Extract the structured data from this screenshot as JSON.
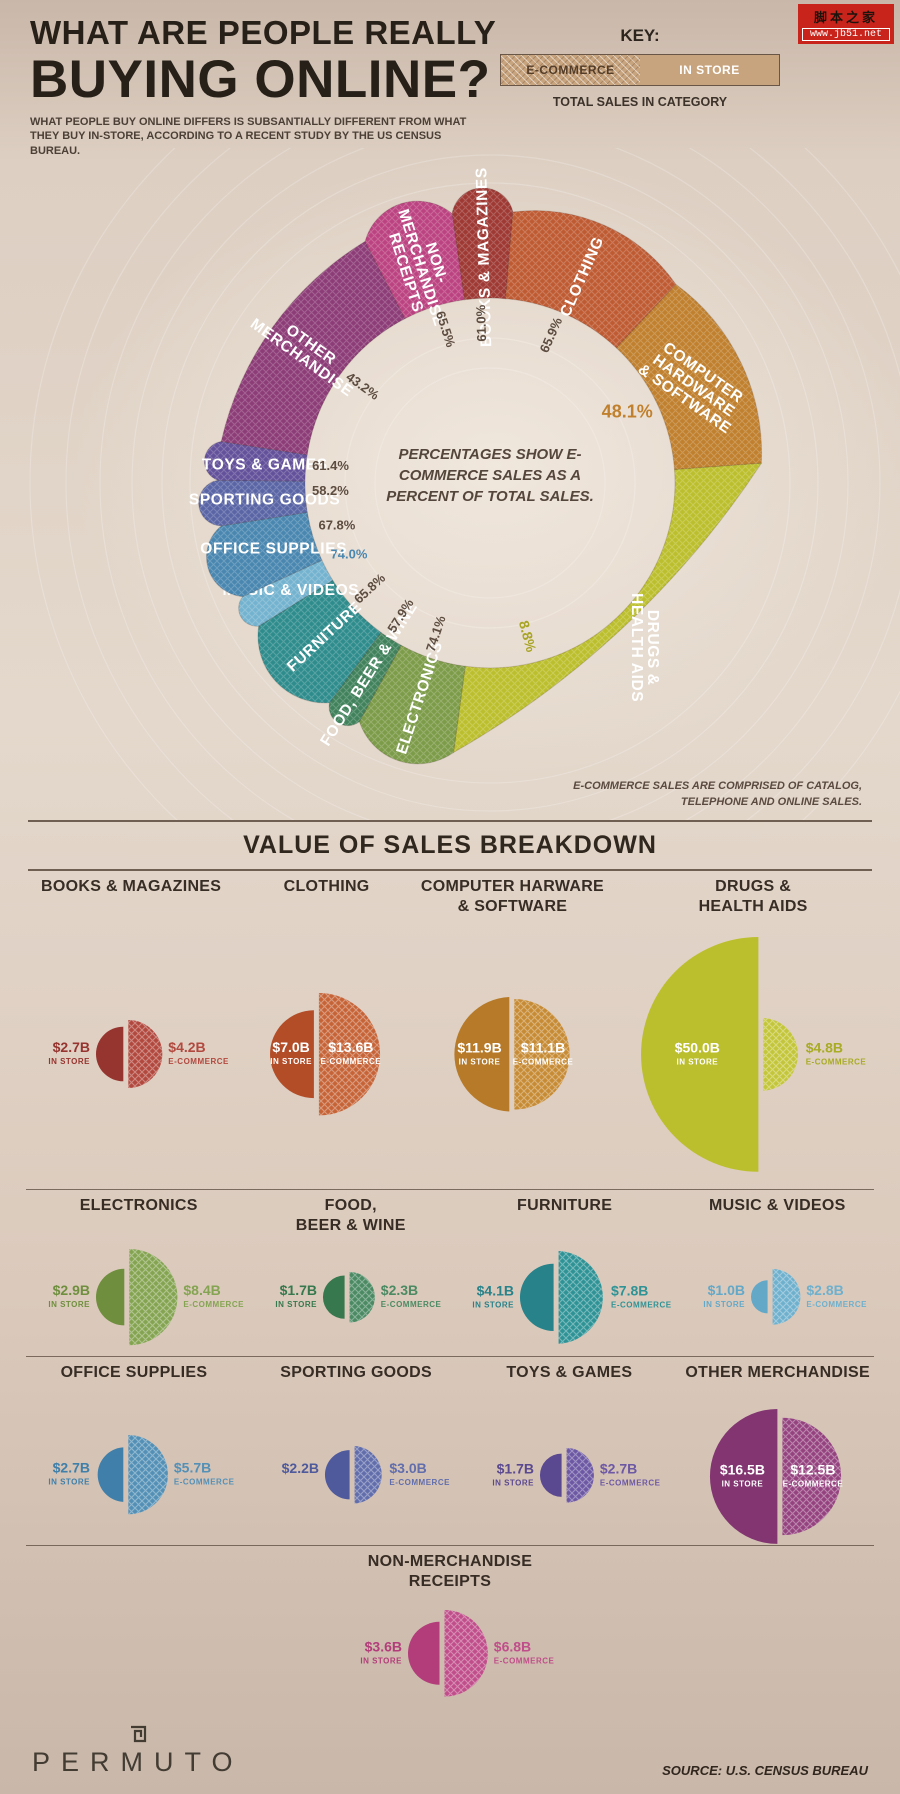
{
  "meta": {
    "watermark_line1": "脚本之家",
    "watermark_line2": "www.jb51.net"
  },
  "header": {
    "title_line1": "WHAT ARE PEOPLE REALLY",
    "title_line2": "BUYING ONLINE?",
    "subtitle": "WHAT PEOPLE BUY ONLINE DIFFERS IS SUBSANTIALLY DIFFERENT FROM WHAT THEY BUY IN-STORE, ACCORDING TO A RECENT STUDY BY THE US CENSUS BUREAU.",
    "key": {
      "label": "KEY:",
      "ecommerce": "E-COMMERCE",
      "instore": "IN STORE",
      "swatch_color": "#c8a47e",
      "total_caption": "TOTAL SALES IN CATEGORY"
    }
  },
  "footer": {
    "brand": "PERMUTO",
    "source": "SOURCE: U.S. CENSUS BUREAU"
  },
  "chart_data": [
    {
      "type": "donut",
      "title": "E-commerce sales as a percent of total sales, by category",
      "center_text": "PERCENTAGES SHOW E-COMMERCE SALES AS A PERCENT OF TOTAL SALES.",
      "note": "E-COMMERCE SALES ARE COMPRISED OF CATALOG, TELEPHONE AND ONLINE SALES.",
      "start_angle": -8,
      "segments": [
        {
          "label": "BOOKS & MAGAZINES",
          "lines": [
            "BOOKS & MAGAZINES"
          ],
          "ecommerce_pct": 61.0,
          "total_b": 6.9,
          "color": "#9e3934"
        },
        {
          "label": "CLOTHING",
          "lines": [
            "CLOTHING"
          ],
          "ecommerce_pct": 65.9,
          "total_b": 20.6,
          "color": "#bf5b33"
        },
        {
          "label": "COMPUTER HARDWARE & SOFTWARE",
          "lines": [
            "COMPUTER",
            "HARDWARE",
            "& SOFTWARE"
          ],
          "ecommerce_pct": 48.1,
          "total_b": 23.0,
          "color": "#c0802e",
          "label_rot": 35,
          "pct_rot": 0,
          "pct_size": 18,
          "pct_r": 152,
          "pct_color": "#c0802e"
        },
        {
          "label": "DRUGS & HEALTH AIDS",
          "lines": [
            "DRUGS &",
            "HEALTH AIDS"
          ],
          "ecommerce_pct": 8.8,
          "total_b": 54.8,
          "color": "#bcbf2d",
          "label_rot": 90,
          "pct_rot": 75,
          "pct_r": 158,
          "pct_angle": 168,
          "pct_color": "#a8a424",
          "pct_size": 14
        },
        {
          "label": "ELECTRONICS",
          "lines": [
            "ELECTRONICS"
          ],
          "ecommerce_pct": 74.1,
          "total_b": 11.3,
          "color": "#7d9c49"
        },
        {
          "label": "FOOD, BEER & WINE",
          "lines": [
            "FOOD, BEER & WINE"
          ],
          "ecommerce_pct": 57.9,
          "total_b": 4.0,
          "color": "#41825c"
        },
        {
          "label": "FURNITURE",
          "lines": [
            "FURNITURE"
          ],
          "ecommerce_pct": 65.8,
          "total_b": 11.9,
          "color": "#2f8c8c"
        },
        {
          "label": "MUSIC & VIDEOS",
          "lines": [
            "MUSIC & VIDEOS"
          ],
          "ecommerce_pct": 74.0,
          "total_b": 3.8,
          "color": "#74b3cf",
          "label_rot": 0,
          "pct_color": "#4a87b0"
        },
        {
          "label": "OFFICE SUPPLIES",
          "lines": [
            "OFFICE SUPPLIES"
          ],
          "ecommerce_pct": 67.8,
          "total_b": 8.4,
          "color": "#4a87b0",
          "label_rot": 0
        },
        {
          "label": "SPORTING GOODS",
          "lines": [
            "SPORTING GOODS"
          ],
          "ecommerce_pct": 58.2,
          "total_b": 5.2,
          "color": "#5a65a5",
          "label_rot": 0
        },
        {
          "label": "TOYS & GAMES",
          "lines": [
            "TOYS & GAMES"
          ],
          "ecommerce_pct": 61.4,
          "total_b": 4.4,
          "color": "#64519b",
          "label_rot": 0
        },
        {
          "label": "OTHER MERCHANDISE",
          "lines": [
            "OTHER",
            "MERCHANDISE"
          ],
          "ecommerce_pct": 43.2,
          "total_b": 29.0,
          "color": "#8c3c76"
        },
        {
          "label": "NON-MERCHANDISE RECEIPTS",
          "lines": [
            "NON-",
            "MERCHANDISE",
            "RECEIPTS"
          ],
          "ecommerce_pct": 65.5,
          "total_b": 10.4,
          "color": "#bc4381"
        }
      ]
    },
    {
      "type": "semicircle-pairs",
      "title": "VALUE OF SALES BREAKDOWN",
      "unit": "billions USD",
      "in_store_label": "IN STORE",
      "ecommerce_label": "E-COMMERCE",
      "rows": [
        [
          {
            "title": "BOOKS & MAGAZINES",
            "title_lines": [
              "BOOKS & MAGAZINES"
            ],
            "in_store_b": 2.7,
            "ecommerce_b": 4.2,
            "in_store_display": "$2.7B",
            "ecommerce_display": "$4.2B",
            "in_color": "#96342f",
            "ec_color": "#b2493f",
            "in_inside": false,
            "ec_inside": false
          },
          {
            "title": "CLOTHING",
            "title_lines": [
              "CLOTHING"
            ],
            "in_store_b": 7.0,
            "ecommerce_b": 13.6,
            "in_store_display": "$7.0B",
            "ecommerce_display": "$13.6B",
            "in_color": "#b34d28",
            "ec_color": "#c66438",
            "in_inside": true,
            "ec_inside": true
          },
          {
            "title": "COMPUTER HARWARE & SOFTWARE",
            "title_lines": [
              "COMPUTER HARWARE",
              "& SOFTWARE"
            ],
            "in_store_b": 11.9,
            "ecommerce_b": 11.1,
            "in_store_display": "$11.9B",
            "ecommerce_display": "$11.1B",
            "in_color": "#b67a29",
            "ec_color": "#c68b34",
            "in_inside": true,
            "ec_inside": true
          },
          {
            "title": "DRUGS & HEALTH AIDS",
            "title_lines": [
              "DRUGS &",
              "HEALTH AIDS"
            ],
            "in_store_b": 50.0,
            "ecommerce_b": 4.8,
            "in_store_display": "$50.0B",
            "ecommerce_display": "$4.8B",
            "in_color": "#bcbf2d",
            "ec_color": "#c3c63a",
            "ec_text": "#a8ab24",
            "in_inside": true,
            "ec_inside": false,
            "in_text_inside": "#8a8c1e"
          }
        ],
        [
          {
            "title": "ELECTRONICS",
            "title_lines": [
              "ELECTRONICS"
            ],
            "in_store_b": 2.9,
            "ecommerce_b": 8.4,
            "in_store_display": "$2.9B",
            "ecommerce_display": "$8.4B",
            "in_color": "#6f8f3e",
            "ec_color": "#85a452",
            "in_inside": false,
            "ec_inside": false
          },
          {
            "title": "FOOD, BEER & WINE",
            "title_lines": [
              "FOOD,",
              "BEER & WINE"
            ],
            "in_store_b": 1.7,
            "ecommerce_b": 2.3,
            "in_store_display": "$1.7B",
            "ecommerce_display": "$2.3B",
            "in_color": "#37784f",
            "ec_color": "#4b8a63",
            "in_inside": false,
            "ec_inside": false
          },
          {
            "title": "FURNITURE",
            "title_lines": [
              "FURNITURE"
            ],
            "in_store_b": 4.1,
            "ecommerce_b": 7.8,
            "in_store_display": "$4.1B",
            "ecommerce_display": "$7.8B",
            "in_color": "#27828a",
            "ec_color": "#2f9396",
            "in_inside": false,
            "ec_inside": false
          },
          {
            "title": "MUSIC & VIDEOS",
            "title_lines": [
              "MUSIC & VIDEOS"
            ],
            "in_store_b": 1.0,
            "ecommerce_b": 2.8,
            "in_store_display": "$1.0B",
            "ecommerce_display": "$2.8B",
            "in_color": "#64a8c8",
            "ec_color": "#6fb0cd",
            "in_inside": false,
            "ec_inside": false
          }
        ],
        [
          {
            "title": "OFFICE SUPPLIES",
            "title_lines": [
              "OFFICE SUPPLIES"
            ],
            "in_store_b": 2.7,
            "ecommerce_b": 5.7,
            "in_store_display": "$2.7B",
            "ecommerce_display": "$5.7B",
            "in_color": "#3f7fa9",
            "ec_color": "#5490b6",
            "in_inside": false,
            "ec_inside": false
          },
          {
            "title": "SPORTING GOODS",
            "title_lines": [
              "SPORTING GOODS"
            ],
            "in_store_b": 2.2,
            "ecommerce_b": 3.0,
            "in_store_display": "$2.2B",
            "ecommerce_display": "$3.0B",
            "in_color": "#4f5a9c",
            "ec_color": "#626eac",
            "in_inside": false,
            "ec_inside": false,
            "show_in_sub": false
          },
          {
            "title": "TOYS & GAMES",
            "title_lines": [
              "TOYS & GAMES"
            ],
            "in_store_b": 1.7,
            "ecommerce_b": 2.7,
            "in_store_display": "$1.7B",
            "ecommerce_display": "$2.7B",
            "in_color": "#5a4890",
            "ec_color": "#6d58a4",
            "in_inside": false,
            "ec_inside": false
          },
          {
            "title": "OTHER MERCHANDISE",
            "title_lines": [
              "OTHER MERCHANDISE"
            ],
            "in_store_b": 16.5,
            "ecommerce_b": 12.5,
            "in_store_display": "$16.5B",
            "ecommerce_display": "$12.5B",
            "in_color": "#823570",
            "ec_color": "#95437f",
            "in_inside": true,
            "ec_inside": true
          }
        ],
        [
          {
            "title": "NON-MERCHANDISE RECEIPTS",
            "title_lines": [
              "NON-MERCHANDISE",
              "RECEIPTS"
            ],
            "in_store_b": 3.6,
            "ecommerce_b": 6.8,
            "in_store_display": "$3.6B",
            "ecommerce_display": "$6.8B",
            "in_color": "#b23d7a",
            "ec_color": "#c04e8a",
            "in_inside": false,
            "ec_inside": false
          }
        ]
      ]
    }
  ]
}
